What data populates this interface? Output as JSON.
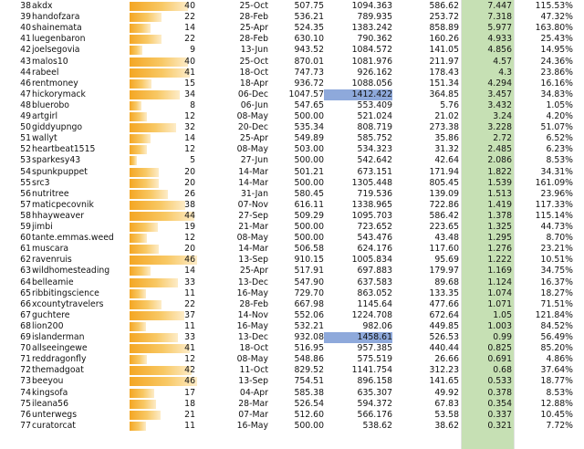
{
  "highlight_color": "#8ea9db",
  "green_column_color": "#c6e0b4",
  "bar_max": 46,
  "rows": [
    {
      "rank": "38",
      "name": "akdx",
      "bar": 40,
      "bar_label": "40",
      "date": "25-Oct",
      "v1": "507.75",
      "v2": "1094.363",
      "v3": "586.62",
      "v4": "7.447",
      "v5": "115.53%",
      "hl": false
    },
    {
      "rank": "39",
      "name": "handofzara",
      "bar": 22,
      "bar_label": "22",
      "date": "28-Feb",
      "v1": "536.21",
      "v2": "789.935",
      "v3": "253.72",
      "v4": "7.318",
      "v5": "47.32%",
      "hl": false
    },
    {
      "rank": "40",
      "name": "shainemata",
      "bar": 14,
      "bar_label": "14",
      "date": "25-Apr",
      "v1": "524.35",
      "v2": "1383.242",
      "v3": "858.89",
      "v4": "5.977",
      "v5": "163.80%",
      "hl": false
    },
    {
      "rank": "41",
      "name": "luegenbaron",
      "bar": 22,
      "bar_label": "22",
      "date": "28-Feb",
      "v1": "630.10",
      "v2": "790.362",
      "v3": "160.26",
      "v4": "4.933",
      "v5": "25.43%",
      "hl": false
    },
    {
      "rank": "42",
      "name": "joelsegovia",
      "bar": 9,
      "bar_label": "9",
      "date": "13-Jun",
      "v1": "943.52",
      "v2": "1084.572",
      "v3": "141.05",
      "v4": "4.856",
      "v5": "14.95%",
      "hl": false
    },
    {
      "rank": "43",
      "name": "malos10",
      "bar": 40,
      "bar_label": "40",
      "date": "25-Oct",
      "v1": "870.01",
      "v2": "1081.976",
      "v3": "211.97",
      "v4": "4.57",
      "v5": "24.36%",
      "hl": false
    },
    {
      "rank": "44",
      "name": "rabeel",
      "bar": 41,
      "bar_label": "41",
      "date": "18-Oct",
      "v1": "747.73",
      "v2": "926.162",
      "v3": "178.43",
      "v4": "4.3",
      "v5": "23.86%",
      "hl": false
    },
    {
      "rank": "46",
      "name": "rentmoney",
      "bar": 15,
      "bar_label": "15",
      "date": "18-Apr",
      "v1": "936.72",
      "v2": "1088.056",
      "v3": "151.34",
      "v4": "4.294",
      "v5": "16.16%",
      "hl": false
    },
    {
      "rank": "47",
      "name": "hickorymack",
      "bar": 34,
      "bar_label": "34",
      "date": "06-Dec",
      "v1": "1047.57",
      "v2": "1412.422",
      "v3": "364.85",
      "v4": "3.457",
      "v5": "34.83%",
      "hl": true
    },
    {
      "rank": "48",
      "name": "bluerobo",
      "bar": 8,
      "bar_label": "8",
      "date": "06-Jun",
      "v1": "547.65",
      "v2": "553.409",
      "v3": "5.76",
      "v4": "3.432",
      "v5": "1.05%",
      "hl": false
    },
    {
      "rank": "49",
      "name": "artgirl",
      "bar": 12,
      "bar_label": "12",
      "date": "08-May",
      "v1": "500.00",
      "v2": "521.024",
      "v3": "21.02",
      "v4": "3.24",
      "v5": "4.20%",
      "hl": false
    },
    {
      "rank": "50",
      "name": "giddyupngo",
      "bar": 32,
      "bar_label": "32",
      "date": "20-Dec",
      "v1": "535.34",
      "v2": "808.719",
      "v3": "273.38",
      "v4": "3.228",
      "v5": "51.07%",
      "hl": false
    },
    {
      "rank": "51",
      "name": "wallyt",
      "bar": 14,
      "bar_label": "14",
      "date": "25-Apr",
      "v1": "549.89",
      "v2": "585.752",
      "v3": "35.86",
      "v4": "2.72",
      "v5": "6.52%",
      "hl": false
    },
    {
      "rank": "52",
      "name": "heartbeat1515",
      "bar": 12,
      "bar_label": "12",
      "date": "08-May",
      "v1": "503.00",
      "v2": "534.323",
      "v3": "31.32",
      "v4": "2.485",
      "v5": "6.23%",
      "hl": false
    },
    {
      "rank": "53",
      "name": "sparkesy43",
      "bar": 5,
      "bar_label": "5",
      "date": "27-Jun",
      "v1": "500.00",
      "v2": "542.642",
      "v3": "42.64",
      "v4": "2.086",
      "v5": "8.53%",
      "hl": false
    },
    {
      "rank": "54",
      "name": "spunkpuppet",
      "bar": 20,
      "bar_label": "20",
      "date": "14-Mar",
      "v1": "501.21",
      "v2": "673.151",
      "v3": "171.94",
      "v4": "1.822",
      "v5": "34.31%",
      "hl": false
    },
    {
      "rank": "55",
      "name": "src3",
      "bar": 20,
      "bar_label": "20",
      "date": "14-Mar",
      "v1": "500.00",
      "v2": "1305.448",
      "v3": "805.45",
      "v4": "1.539",
      "v5": "161.09%",
      "hl": false
    },
    {
      "rank": "56",
      "name": "nutritree",
      "bar": 26,
      "bar_label": "26",
      "date": "31-Jan",
      "v1": "580.45",
      "v2": "719.536",
      "v3": "139.09",
      "v4": "1.513",
      "v5": "23.96%",
      "hl": false
    },
    {
      "rank": "57",
      "name": "maticpecovnik",
      "bar": 38,
      "bar_label": "38",
      "date": "07-Nov",
      "v1": "616.11",
      "v2": "1338.965",
      "v3": "722.86",
      "v4": "1.419",
      "v5": "117.33%",
      "hl": false
    },
    {
      "rank": "58",
      "name": "hhayweaver",
      "bar": 44,
      "bar_label": "44",
      "date": "27-Sep",
      "v1": "509.29",
      "v2": "1095.703",
      "v3": "586.42",
      "v4": "1.378",
      "v5": "115.14%",
      "hl": false
    },
    {
      "rank": "59",
      "name": "jimbi",
      "bar": 19,
      "bar_label": "19",
      "date": "21-Mar",
      "v1": "500.00",
      "v2": "723.652",
      "v3": "223.65",
      "v4": "1.325",
      "v5": "44.73%",
      "hl": false
    },
    {
      "rank": "60",
      "name": "tante.emmas.weed",
      "bar": 12,
      "bar_label": "12",
      "date": "08-May",
      "v1": "500.00",
      "v2": "543.476",
      "v3": "43.48",
      "v4": "1.295",
      "v5": "8.70%",
      "hl": false
    },
    {
      "rank": "61",
      "name": "muscara",
      "bar": 20,
      "bar_label": "20",
      "date": "14-Mar",
      "v1": "506.58",
      "v2": "624.176",
      "v3": "117.60",
      "v4": "1.276",
      "v5": "23.21%",
      "hl": false
    },
    {
      "rank": "62",
      "name": "ravenruis",
      "bar": 46,
      "bar_label": "46",
      "date": "13-Sep",
      "v1": "910.15",
      "v2": "1005.834",
      "v3": "95.69",
      "v4": "1.222",
      "v5": "10.51%",
      "hl": false
    },
    {
      "rank": "63",
      "name": "wildhomesteading",
      "bar": 14,
      "bar_label": "14",
      "date": "25-Apr",
      "v1": "517.91",
      "v2": "697.883",
      "v3": "179.97",
      "v4": "1.169",
      "v5": "34.75%",
      "hl": false
    },
    {
      "rank": "64",
      "name": "belleamie",
      "bar": 33,
      "bar_label": "33",
      "date": "13-Dec",
      "v1": "547.90",
      "v2": "637.583",
      "v3": "89.68",
      "v4": "1.124",
      "v5": "16.37%",
      "hl": false
    },
    {
      "rank": "65",
      "name": "ribbitingscience",
      "bar": 11,
      "bar_label": "11",
      "date": "16-May",
      "v1": "729.70",
      "v2": "863.052",
      "v3": "133.35",
      "v4": "1.074",
      "v5": "18.27%",
      "hl": false
    },
    {
      "rank": "66",
      "name": "xcountytravelers",
      "bar": 22,
      "bar_label": "22",
      "date": "28-Feb",
      "v1": "667.98",
      "v2": "1145.64",
      "v3": "477.66",
      "v4": "1.071",
      "v5": "71.51%",
      "hl": false
    },
    {
      "rank": "67",
      "name": "guchtere",
      "bar": 37,
      "bar_label": "37",
      "date": "14-Nov",
      "v1": "552.06",
      "v2": "1224.708",
      "v3": "672.64",
      "v4": "1.05",
      "v5": "121.84%",
      "hl": false
    },
    {
      "rank": "68",
      "name": "lion200",
      "bar": 11,
      "bar_label": "11",
      "date": "16-May",
      "v1": "532.21",
      "v2": "982.06",
      "v3": "449.85",
      "v4": "1.003",
      "v5": "84.52%",
      "hl": false
    },
    {
      "rank": "69",
      "name": "islanderman",
      "bar": 33,
      "bar_label": "33",
      "date": "13-Dec",
      "v1": "932.08",
      "v2": "1458.61",
      "v3": "526.53",
      "v4": "0.99",
      "v5": "56.49%",
      "hl": true
    },
    {
      "rank": "70",
      "name": "allseeingewe",
      "bar": 41,
      "bar_label": "41",
      "date": "18-Oct",
      "v1": "516.95",
      "v2": "957.385",
      "v3": "440.44",
      "v4": "0.825",
      "v5": "85.20%",
      "hl": false
    },
    {
      "rank": "71",
      "name": "reddragonfly",
      "bar": 12,
      "bar_label": "12",
      "date": "08-May",
      "v1": "548.86",
      "v2": "575.519",
      "v3": "26.66",
      "v4": "0.691",
      "v5": "4.86%",
      "hl": false
    },
    {
      "rank": "72",
      "name": "themadgoat",
      "bar": 42,
      "bar_label": "42",
      "date": "11-Oct",
      "v1": "829.52",
      "v2": "1141.754",
      "v3": "312.23",
      "v4": "0.68",
      "v5": "37.64%",
      "hl": false
    },
    {
      "rank": "73",
      "name": "beeyou",
      "bar": 46,
      "bar_label": "46",
      "date": "13-Sep",
      "v1": "754.51",
      "v2": "896.158",
      "v3": "141.65",
      "v4": "0.533",
      "v5": "18.77%",
      "hl": false
    },
    {
      "rank": "74",
      "name": "kingsofa",
      "bar": 17,
      "bar_label": "17",
      "date": "04-Apr",
      "v1": "585.38",
      "v2": "635.307",
      "v3": "49.92",
      "v4": "0.378",
      "v5": "8.53%",
      "hl": false
    },
    {
      "rank": "75",
      "name": "ileana56",
      "bar": 18,
      "bar_label": "18",
      "date": "28-Mar",
      "v1": "526.54",
      "v2": "594.372",
      "v3": "67.83",
      "v4": "0.354",
      "v5": "12.88%",
      "hl": false
    },
    {
      "rank": "76",
      "name": "unterwegs",
      "bar": 21,
      "bar_label": "21",
      "date": "07-Mar",
      "v1": "512.60",
      "v2": "566.176",
      "v3": "53.58",
      "v4": "0.337",
      "v5": "10.45%",
      "hl": false
    },
    {
      "rank": "77",
      "name": "curatorcat",
      "bar": 11,
      "bar_label": "11",
      "date": "16-May",
      "v1": "500.00",
      "v2": "538.62",
      "v3": "38.62",
      "v4": "0.321",
      "v5": "7.72%",
      "hl": false
    }
  ]
}
